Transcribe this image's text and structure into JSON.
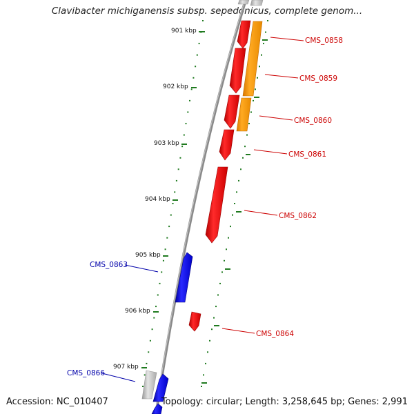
{
  "title": "Clavibacter michiganensis subsp. sepedonicus, complete genom...",
  "footer": {
    "accession": "Accession: NC_010407",
    "summary": "Topology: circular; Length: 3,258,645 bp; Genes: 2,991"
  },
  "colors": {
    "forward_gene": "#ff0000",
    "reverse_gene": "#0000ff",
    "orange_gene": "#ff9900",
    "grey_gene": "#bbbbbb",
    "tick": "#1f7a1f",
    "backbone": "#888888",
    "forward_label": "#cc0000",
    "reverse_label": "#0000aa"
  },
  "ticks": [
    {
      "label": "901 kbp"
    },
    {
      "label": "902 kbp"
    },
    {
      "label": "903 kbp"
    },
    {
      "label": "904 kbp"
    },
    {
      "label": "905 kbp"
    },
    {
      "label": "906 kbp"
    },
    {
      "label": "907 kbp"
    }
  ],
  "genes": [
    {
      "name": "CMS_0858",
      "strand": "+",
      "color": "red"
    },
    {
      "name": "CMS_0859",
      "strand": "+",
      "color": "red"
    },
    {
      "name": "CMS_0860",
      "strand": "+",
      "color": "red"
    },
    {
      "name": "CMS_0861",
      "strand": "+",
      "color": "red"
    },
    {
      "name": "CMS_0862",
      "strand": "+",
      "color": "red"
    },
    {
      "name": "CMS_0863",
      "strand": "-",
      "color": "blue"
    },
    {
      "name": "CMS_0864",
      "strand": "+",
      "color": "red"
    },
    {
      "name": "CMS_0866",
      "strand": "-",
      "color": "blue"
    }
  ]
}
